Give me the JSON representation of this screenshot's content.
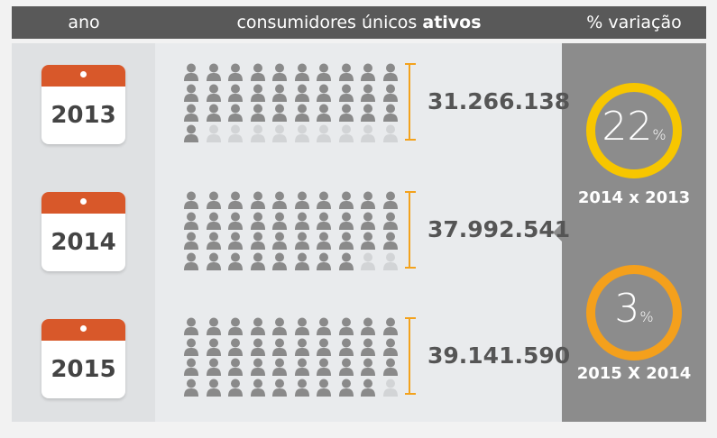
{
  "header": {
    "year": "ano",
    "middle_prefix": "consumidores únicos",
    "middle_bold": "ativos",
    "variation": "% variação"
  },
  "rows": [
    {
      "year": "2013",
      "count": "31.266.138",
      "filled": 31
    },
    {
      "year": "2014",
      "count": "37.992.541",
      "filled": 38
    },
    {
      "year": "2015",
      "count": "39.141.590",
      "filled": 39
    }
  ],
  "variations": [
    {
      "value": "22",
      "unit": "%",
      "label": "2014 x 2013",
      "color": "#f7c600"
    },
    {
      "value": "3",
      "unit": "%",
      "label": "2015 X 2014",
      "color": "#f4a01c"
    }
  ],
  "colors": {
    "header": "#595959",
    "calendar": "#d8582a",
    "person_filled": "#8a8a8a",
    "person_empty": "#d2d4d6",
    "bracket": "#f3a21d"
  }
}
